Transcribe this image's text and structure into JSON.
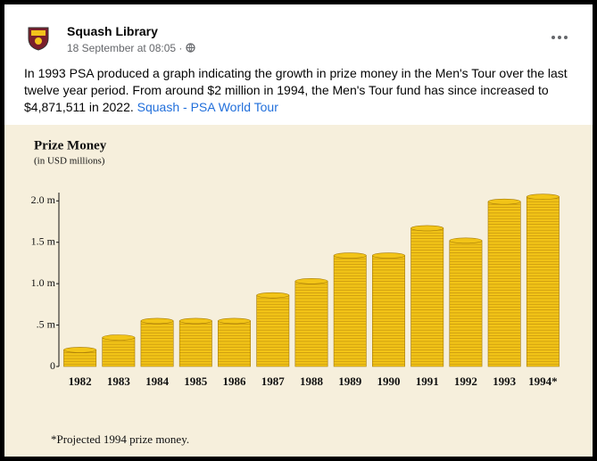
{
  "post": {
    "author": "Squash Library",
    "meta": "18 September at 08:05 ·",
    "text": "In 1993 PSA produced a graph indicating the growth in prize money in the Men's Tour over the last twelve year period. From around $2 million in 1994, the Men's Tour fund has since increased to $4,871,511 in 2022.",
    "link": "Squash - PSA World Tour"
  },
  "chart_data": {
    "type": "bar",
    "title": "Prize Money",
    "subtitle": "(in USD millions)",
    "categories": [
      "1982",
      "1983",
      "1984",
      "1985",
      "1986",
      "1987",
      "1988",
      "1989",
      "1990",
      "1991",
      "1992",
      "1993",
      "1994*"
    ],
    "values": [
      0.2,
      0.35,
      0.55,
      0.55,
      0.55,
      0.86,
      1.03,
      1.34,
      1.34,
      1.67,
      1.52,
      1.99,
      2.05
    ],
    "color": "#f2c417",
    "ylim": [
      0,
      2.1
    ],
    "yticks": [
      0,
      {
        "value": 0.5,
        "label": ".5 m"
      },
      {
        "value": 1.0,
        "label": "1.0 m"
      },
      {
        "value": 1.5,
        "label": "1.5 m"
      },
      {
        "value": 2.0,
        "label": "2.0 m"
      }
    ],
    "note": "*Projected 1994 prize money."
  }
}
